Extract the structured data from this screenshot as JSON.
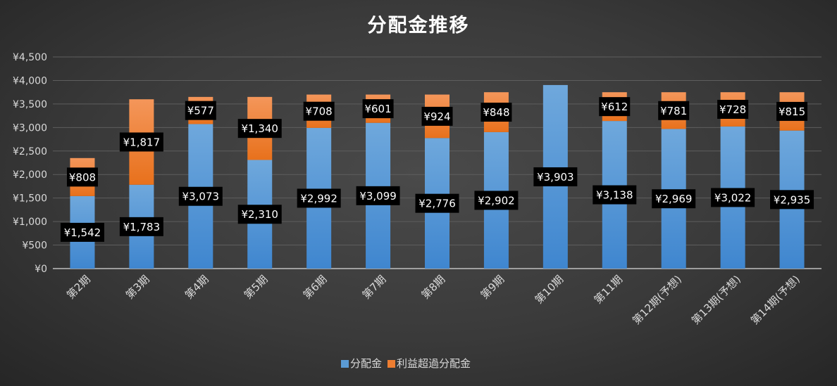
{
  "chart_data": {
    "type": "bar",
    "stacked": true,
    "title": "分配金推移",
    "categories": [
      "第2期",
      "第3期",
      "第4期",
      "第5期",
      "第6期",
      "第7期",
      "第8期",
      "第9期",
      "第10期",
      "第11期",
      "第12期(予想)",
      "第13期(予想)",
      "第14期(予想)"
    ],
    "series": [
      {
        "name": "分配金",
        "color": "#5b9bd5",
        "values": [
          1542,
          1783,
          3073,
          2310,
          2992,
          3099,
          2776,
          2902,
          3903,
          3138,
          2969,
          3022,
          2935
        ],
        "labels": [
          "¥1,542",
          "¥1,783",
          "¥3,073",
          "¥2,310",
          "¥2,992",
          "¥3,099",
          "¥2,776",
          "¥2,902",
          "¥3,903",
          "¥3,138",
          "¥2,969",
          "¥3,022",
          "¥2,935"
        ]
      },
      {
        "name": "利益超過分配金",
        "color": "#ed7d31",
        "values": [
          808,
          1817,
          577,
          1340,
          708,
          601,
          924,
          848,
          0,
          612,
          781,
          728,
          815
        ],
        "labels": [
          "¥808",
          "¥1,817",
          "¥577",
          "¥1,340",
          "¥708",
          "¥601",
          "¥924",
          "¥848",
          "",
          "¥612",
          "¥781",
          "¥728",
          "¥815"
        ]
      }
    ],
    "ylim": [
      0,
      4500
    ],
    "yticks": [
      0,
      500,
      1000,
      1500,
      2000,
      2500,
      3000,
      3500,
      4000,
      4500
    ],
    "ytick_labels": [
      "¥0",
      "¥500",
      "¥1,000",
      "¥1,500",
      "¥2,000",
      "¥2,500",
      "¥3,000",
      "¥3,500",
      "¥4,000",
      "¥4,500"
    ],
    "grid": true,
    "legend_position": "bottom"
  }
}
